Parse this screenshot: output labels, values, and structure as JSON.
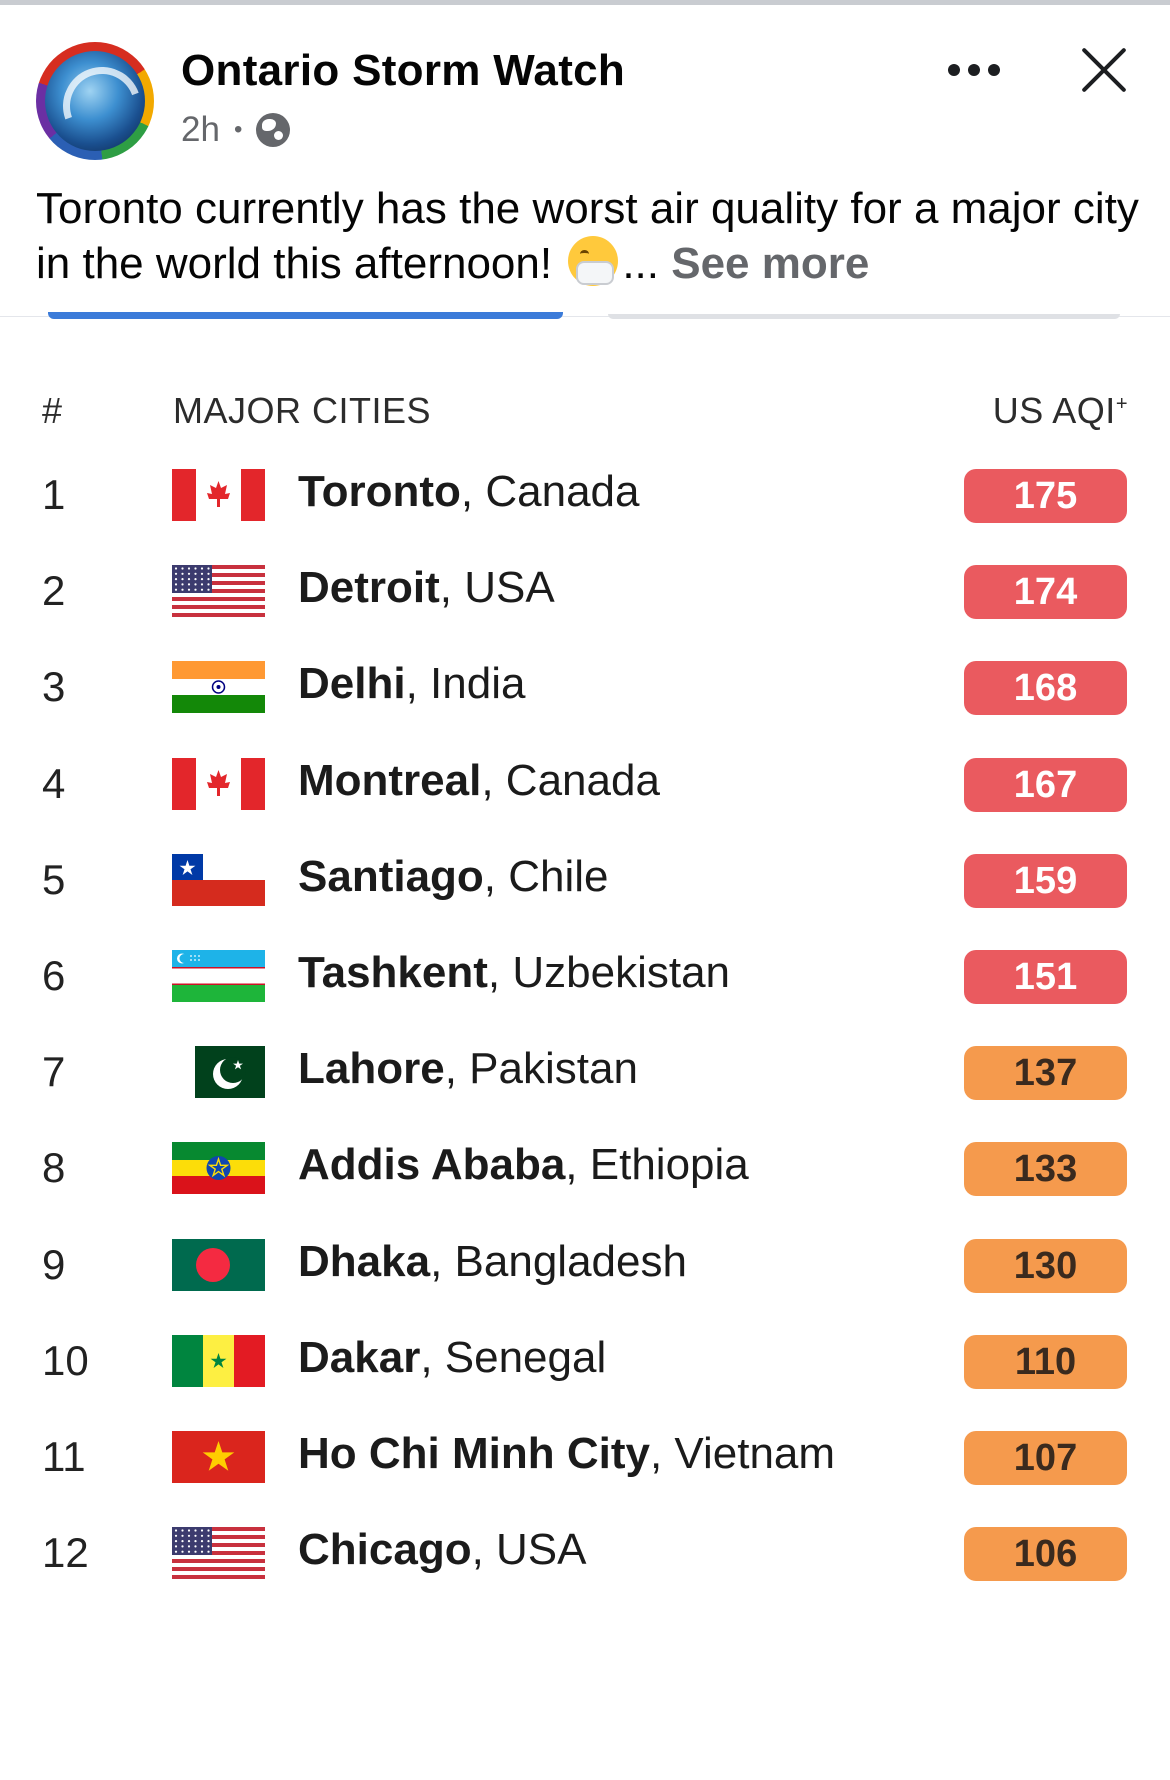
{
  "post": {
    "page_name": "Ontario Storm Watch",
    "time": "2h",
    "text": "Toronto currently has the worst air quality for a major city in the world this afternoon!",
    "ellipsis": "...",
    "see_more": "See more"
  },
  "table": {
    "header": {
      "rank": "#",
      "cities": "MAJOR CITIES",
      "aqi": "US AQI",
      "aqi_mark": "+"
    },
    "colors": {
      "unhealthy": "#ea5a5f",
      "sensitive": "#f59a4d"
    },
    "rows": [
      {
        "rank": "1",
        "city": "Toronto",
        "country": ", Canada",
        "flag": "canada-flag-icon",
        "aqi": "175",
        "level": "unhealthy"
      },
      {
        "rank": "2",
        "city": "Detroit",
        "country": ", USA",
        "flag": "usa-flag-icon",
        "aqi": "174",
        "level": "unhealthy"
      },
      {
        "rank": "3",
        "city": "Delhi",
        "country": ", India",
        "flag": "india-flag-icon",
        "aqi": "168",
        "level": "unhealthy"
      },
      {
        "rank": "4",
        "city": "Montreal",
        "country": ", Canada",
        "flag": "canada-flag-icon",
        "aqi": "167",
        "level": "unhealthy"
      },
      {
        "rank": "5",
        "city": "Santiago",
        "country": ", Chile",
        "flag": "chile-flag-icon",
        "aqi": "159",
        "level": "unhealthy"
      },
      {
        "rank": "6",
        "city": "Tashkent",
        "country": ", Uzbekistan",
        "flag": "uzbekistan-flag-icon",
        "aqi": "151",
        "level": "unhealthy"
      },
      {
        "rank": "7",
        "city": "Lahore",
        "country": ", Pakistan",
        "flag": "pakistan-flag-icon",
        "aqi": "137",
        "level": "sensitive"
      },
      {
        "rank": "8",
        "city": "Addis Ababa",
        "country": ", Ethiopia",
        "flag": "ethiopia-flag-icon",
        "aqi": "133",
        "level": "sensitive"
      },
      {
        "rank": "9",
        "city": "Dhaka",
        "country": ", Bangladesh",
        "flag": "bangladesh-flag-icon",
        "aqi": "130",
        "level": "sensitive"
      },
      {
        "rank": "10",
        "city": "Dakar",
        "country": ", Senegal",
        "flag": "senegal-flag-icon",
        "aqi": "110",
        "level": "sensitive"
      },
      {
        "rank": "11",
        "city": "Ho Chi Minh City",
        "country": ", Vietnam",
        "flag": "vietnam-flag-icon",
        "aqi": "107",
        "level": "sensitive"
      },
      {
        "rank": "12",
        "city": "Chicago",
        "country": ", USA",
        "flag": "usa-flag-icon",
        "aqi": "106",
        "level": "sensitive"
      }
    ]
  }
}
